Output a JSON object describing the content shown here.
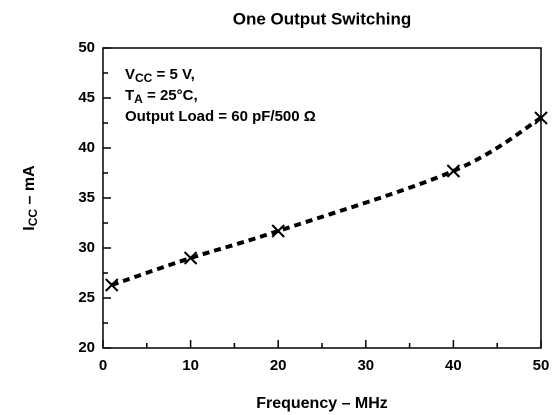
{
  "chart_data": {
    "type": "line",
    "title": "One Output Switching",
    "x_label": "Frequency – MHz",
    "y_label": {
      "main": "I",
      "sub": "CC",
      "rest": " – mA"
    },
    "annotations": [
      {
        "main": "V",
        "sub": "CC",
        "rest": " = 5 V,"
      },
      {
        "main": "T",
        "sub": "A",
        "rest": " = 25°C,"
      },
      {
        "main": "Output Load = 60 pF/500 Ω",
        "sub": "",
        "rest": ""
      }
    ],
    "x": [
      1,
      10,
      20,
      40,
      50
    ],
    "series": [
      {
        "name": "ICC",
        "color": "#000000",
        "values": [
          26.3,
          29.0,
          31.7,
          37.7,
          43.0
        ]
      }
    ],
    "xlim": [
      0,
      50
    ],
    "xticks": [
      0,
      10,
      20,
      30,
      40,
      50
    ],
    "xminorticks": [
      5,
      15,
      25,
      35,
      45
    ],
    "ylim": [
      20,
      50
    ],
    "yticks": [
      20,
      25,
      30,
      35,
      40,
      45,
      50
    ],
    "yminorticks": [
      22.5,
      27.5,
      32.5,
      37.5,
      42.5,
      47.5
    ],
    "grid": false,
    "line_style": "dashed",
    "marker": "x"
  }
}
